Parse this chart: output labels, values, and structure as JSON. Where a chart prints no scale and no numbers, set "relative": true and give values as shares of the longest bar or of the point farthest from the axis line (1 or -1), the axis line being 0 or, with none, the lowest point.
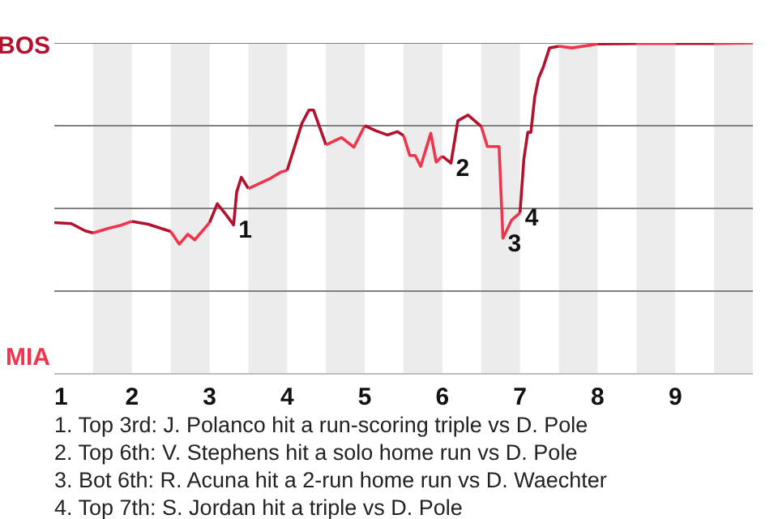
{
  "chart_data": {
    "type": "line",
    "relative": true,
    "xlim": [
      1,
      10
    ],
    "xticks": [
      1,
      2,
      3,
      4,
      5,
      6,
      7,
      8,
      9
    ],
    "series": [
      {
        "color": "#b3122e",
        "x": [
          1,
          1.22,
          1.4,
          1.5
        ],
        "values": [
          0.457,
          0.454,
          0.432,
          0.426
        ]
      },
      {
        "color": "#f0344c",
        "x": [
          1.5,
          1.7,
          1.86,
          2
        ],
        "values": [
          0.426,
          0.44,
          0.449,
          0.461
        ]
      },
      {
        "color": "#b3122e",
        "x": [
          2,
          2.21,
          2.5
        ],
        "values": [
          0.461,
          0.452,
          0.43
        ]
      },
      {
        "color": "#f0344c",
        "x": [
          2.5,
          2.61,
          2.72,
          2.81,
          3
        ],
        "values": [
          0.43,
          0.392,
          0.422,
          0.405,
          0.457
        ]
      },
      {
        "color": "#b3122e",
        "x": [
          3,
          3.1,
          3.21,
          3.31,
          3.35,
          3.41,
          3.5
        ],
        "values": [
          0.457,
          0.514,
          0.482,
          0.45,
          0.55,
          0.594,
          0.56
        ]
      },
      {
        "color": "#f0344c",
        "x": [
          3.5,
          3.77,
          3.92,
          4
        ],
        "values": [
          0.56,
          0.589,
          0.61,
          0.615
        ]
      },
      {
        "color": "#b3122e",
        "x": [
          4,
          4.09,
          4.19,
          4.28,
          4.34,
          4.5
        ],
        "values": [
          0.615,
          0.682,
          0.757,
          0.797,
          0.797,
          0.692
        ]
      },
      {
        "color": "#f0344c",
        "x": [
          4.5,
          4.7,
          4.86,
          5
        ],
        "values": [
          0.692,
          0.714,
          0.685,
          0.75
        ]
      },
      {
        "color": "#b3122e",
        "x": [
          5,
          5.14,
          5.29,
          5.42,
          5.5
        ],
        "values": [
          0.75,
          0.735,
          0.722,
          0.732,
          0.72
        ]
      },
      {
        "color": "#f0344c",
        "x": [
          5.5,
          5.58,
          5.65,
          5.72,
          5.85,
          5.92,
          6
        ],
        "values": [
          0.72,
          0.66,
          0.66,
          0.627,
          0.727,
          0.64,
          0.658
        ]
      },
      {
        "color": "#b3122e",
        "x": [
          6,
          6.11,
          6.2,
          6.33,
          6.5
        ],
        "values": [
          0.658,
          0.637,
          0.765,
          0.782,
          0.748
        ]
      },
      {
        "color": "#f0344c",
        "x": [
          6.5,
          6.58,
          6.73,
          6.78,
          6.89,
          7
        ],
        "values": [
          0.748,
          0.687,
          0.687,
          0.41,
          0.464,
          0.487
        ]
      },
      {
        "color": "#b3122e",
        "x": [
          7,
          7.05,
          7.1,
          7.14,
          7.19,
          7.24,
          7.3,
          7.38,
          7.5
        ],
        "values": [
          0.487,
          0.65,
          0.73,
          0.73,
          0.837,
          0.894,
          0.927,
          0.985,
          0.99
        ]
      },
      {
        "color": "#f0344c",
        "x": [
          7.5,
          7.67,
          8
        ],
        "values": [
          0.99,
          0.985,
          0.997
        ]
      },
      {
        "color": "#b3122e",
        "x": [
          8,
          8.5
        ],
        "values": [
          0.997,
          0.998
        ]
      },
      {
        "color": "#f0344c",
        "x": [
          8.5,
          9
        ],
        "values": [
          0.998,
          0.998
        ]
      },
      {
        "color": "#b3122e",
        "x": [
          9,
          9.5
        ],
        "values": [
          0.998,
          0.998
        ]
      },
      {
        "color": "#f0344c",
        "x": [
          9.5,
          10
        ],
        "values": [
          0.998,
          1
        ]
      }
    ],
    "ref_lines": [
      {
        "axis": "y",
        "value": 0.25,
        "color": "#808080"
      },
      {
        "axis": "y",
        "value": 0.5,
        "color": "#808080"
      },
      {
        "axis": "y",
        "value": 0.75,
        "color": "#808080"
      },
      {
        "axis": "y",
        "value": 1,
        "color": "#808080"
      }
    ],
    "bands": [
      {
        "axis": "x",
        "from": 1.5,
        "to": 2,
        "color": "#ececec"
      },
      {
        "axis": "x",
        "from": 2.5,
        "to": 3,
        "color": "#ececec"
      },
      {
        "axis": "x",
        "from": 3.5,
        "to": 4,
        "color": "#ececec"
      },
      {
        "axis": "x",
        "from": 4.5,
        "to": 5,
        "color": "#ececec"
      },
      {
        "axis": "x",
        "from": 5.5,
        "to": 6,
        "color": "#ececec"
      },
      {
        "axis": "x",
        "from": 6.5,
        "to": 7,
        "color": "#ececec"
      },
      {
        "axis": "x",
        "from": 7.5,
        "to": 8,
        "color": "#ececec"
      },
      {
        "axis": "x",
        "from": 8.5,
        "to": 9,
        "color": "#ececec"
      },
      {
        "axis": "x",
        "from": 9.5,
        "to": 10,
        "color": "#ececec"
      }
    ],
    "annotations": [
      "BOS",
      "MIA",
      {
        "text": "1",
        "x": 3.31,
        "y": 0.45
      },
      {
        "text": "2",
        "x": 6.11,
        "y": 0.637
      },
      {
        "text": "3",
        "x": 6.78,
        "y": 0.41
      },
      {
        "text": "4",
        "x": 7,
        "y": 0.487
      },
      "1. Top 3rd: J. Polanco hit a run-scoring triple vs D. Pole",
      "2. Top 6th: V. Stephens hit a solo home run vs D. Pole",
      "3. Bot 6th: R. Acuna hit a 2-run home run vs D. Waechter",
      "4. Top 7th: S. Jordan hit a triple vs D. Pole"
    ]
  }
}
